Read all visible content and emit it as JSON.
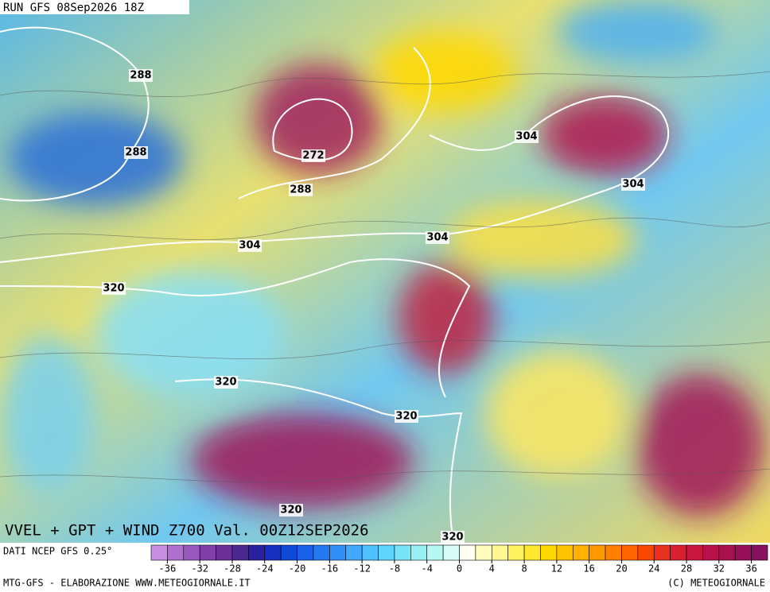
{
  "header": {
    "run": "RUN GFS 08Sep2026 18Z"
  },
  "map": {
    "title": "VVEL + GPT + WIND Z700 Val. 00Z12SEP2026",
    "contour_labels": [
      288,
      288,
      272,
      288,
      304,
      320,
      304,
      304,
      304,
      320,
      320,
      320,
      320
    ]
  },
  "colorbar": {
    "source": "DATI NCEP GFS 0.25°",
    "lim": [
      -38,
      38
    ],
    "ticks": [
      -36,
      -32,
      -28,
      -24,
      -20,
      -16,
      -12,
      -8,
      -4,
      0,
      4,
      8,
      12,
      16,
      20,
      24,
      28,
      32,
      36
    ],
    "colors": [
      "#c890e0",
      "#b070d0",
      "#9858c0",
      "#8040a8",
      "#6a3098",
      "#4c2890",
      "#2a20a0",
      "#1830c0",
      "#1048d8",
      "#1860e8",
      "#2478f0",
      "#3090f8",
      "#40a8ff",
      "#50c0ff",
      "#60d4ff",
      "#78e4f8",
      "#98f0f4",
      "#b8f8f4",
      "#d8fcf8",
      "#fffff0",
      "#fffcc0",
      "#fff890",
      "#fff460",
      "#ffe830",
      "#ffd800",
      "#ffc400",
      "#ffb000",
      "#ff9800",
      "#ff8000",
      "#ff6400",
      "#f84800",
      "#e83020",
      "#d82030",
      "#c81840",
      "#b81048",
      "#a81050",
      "#981058",
      "#881060"
    ]
  },
  "footer": {
    "left": "MTG-GFS - ELABORAZIONE WWW.METEOGIORNALE.IT",
    "right": "(C) METEOGIORNALE"
  }
}
